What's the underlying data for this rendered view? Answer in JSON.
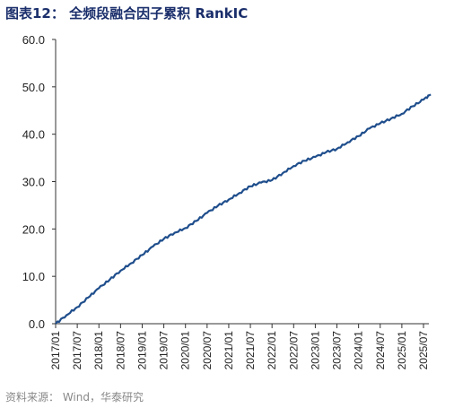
{
  "title": "图表12：  全频段融合因子累积 RankIC",
  "source": "资料来源：  Wind，华泰研究",
  "colors": {
    "line": "#1f4e8c",
    "axis": "#333333",
    "title": "#1a2e6b",
    "accent": "#c0392b"
  },
  "chart_data": {
    "type": "line",
    "title": "",
    "xlabel": "",
    "ylabel": "",
    "ylim": [
      0,
      60
    ],
    "yticks": [
      "0.0",
      "10.0",
      "20.0",
      "30.0",
      "40.0",
      "50.0",
      "60.0"
    ],
    "xticks": [
      "2017/01",
      "2017/07",
      "2018/01",
      "2018/07",
      "2019/01",
      "2019/07",
      "2020/01",
      "2020/07",
      "2021/01",
      "2021/07",
      "2022/01",
      "2022/07",
      "2023/01",
      "2023/07",
      "2024/01",
      "2024/07",
      "2025/01",
      "2025/07"
    ],
    "grid": false,
    "legend": "none",
    "series": [
      {
        "x": [
          "2017/01",
          "2017/04",
          "2017/07",
          "2017/10",
          "2018/01",
          "2018/04",
          "2018/07",
          "2018/10",
          "2019/01",
          "2019/04",
          "2019/07",
          "2019/10",
          "2020/01",
          "2020/04",
          "2020/07",
          "2020/10",
          "2021/01",
          "2021/04",
          "2021/07",
          "2021/10",
          "2022/01",
          "2022/04",
          "2022/07",
          "2022/10",
          "2023/01",
          "2023/04",
          "2023/07",
          "2023/10",
          "2024/01",
          "2024/04",
          "2024/07",
          "2024/10",
          "2025/01",
          "2025/04",
          "2025/07",
          "2025/09"
        ],
        "values": [
          0.0,
          1.8,
          3.5,
          5.5,
          7.5,
          9.3,
          11.2,
          12.8,
          14.5,
          16.3,
          17.9,
          19.2,
          20.2,
          21.7,
          23.4,
          24.9,
          26.2,
          27.6,
          29.0,
          29.8,
          30.3,
          31.8,
          33.3,
          34.4,
          35.2,
          36.2,
          36.9,
          38.3,
          39.6,
          41.2,
          42.3,
          43.3,
          44.3,
          45.9,
          47.3,
          48.4
        ]
      }
    ]
  }
}
